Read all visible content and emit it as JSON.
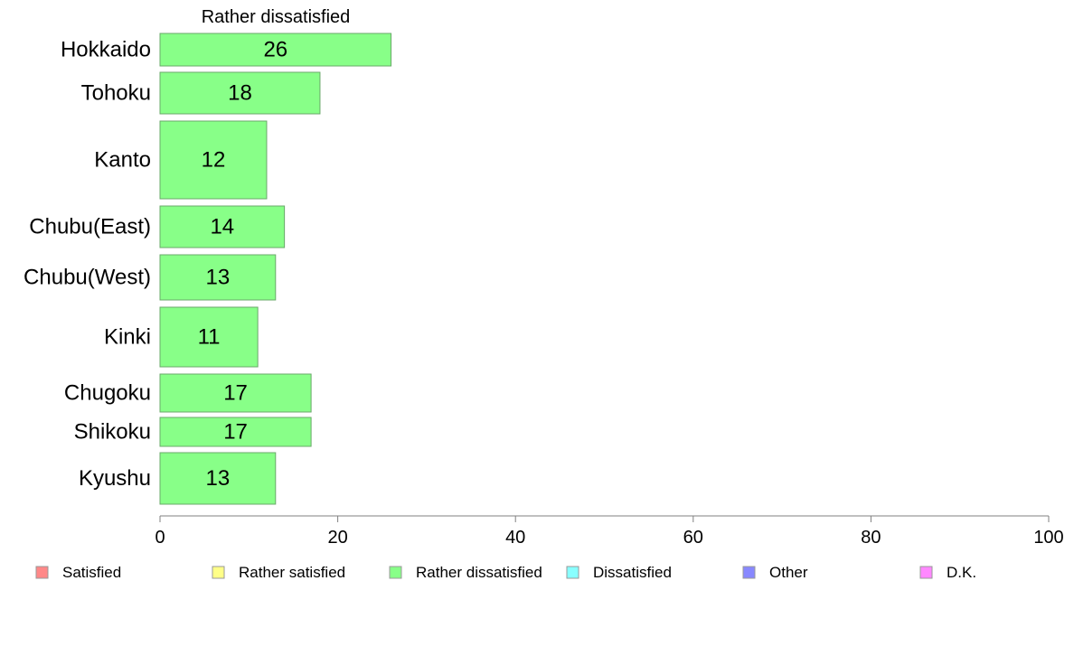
{
  "chart_data": {
    "type": "bar",
    "orientation": "horizontal",
    "title": "Rather dissatisfied",
    "categories": [
      "Hokkaido",
      "Tohoku",
      "Kanto",
      "Chubu(East)",
      "Chubu(West)",
      "Kinki",
      "Chugoku",
      "Shikoku",
      "Kyushu"
    ],
    "values": [
      26,
      18,
      12,
      14,
      13,
      11,
      17,
      17,
      13
    ],
    "data_labels": [
      "26",
      "18",
      "12",
      "14",
      "13",
      "11",
      "17",
      "17",
      "13"
    ],
    "bar_color": "#88ff88",
    "xlim": [
      0,
      100
    ],
    "xticks": [
      0,
      20,
      40,
      60,
      80,
      100
    ],
    "xtick_labels": [
      "0",
      "20",
      "40",
      "60",
      "80",
      "100"
    ],
    "grid": false,
    "legend_position": "bottom",
    "legend": [
      {
        "label": "Satisfied",
        "color": "#ff8888"
      },
      {
        "label": "Rather satisfied",
        "color": "#ffff88"
      },
      {
        "label": "Rather dissatisfied",
        "color": "#88ff88"
      },
      {
        "label": "Dissatisfied",
        "color": "#88ffff"
      },
      {
        "label": "Other",
        "color": "#8888ff"
      },
      {
        "label": "D.K.",
        "color": "#ff88ff"
      }
    ]
  }
}
